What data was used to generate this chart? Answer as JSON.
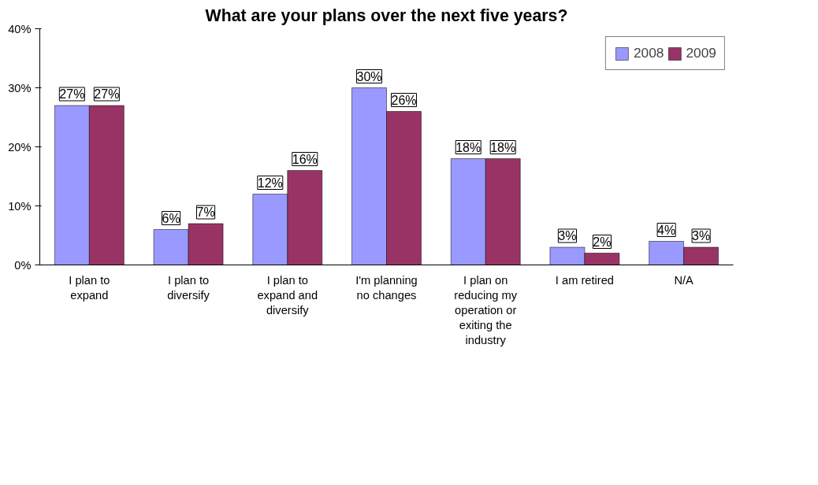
{
  "chart_data": {
    "type": "bar",
    "title": "What are your plans over the next five years?",
    "categories": [
      "I plan to expand",
      "I plan to diversify",
      "I plan to expand and diversify",
      "I'm planning no changes",
      "I plan on reducing my operation or exiting the industry",
      "I am retired",
      "N/A"
    ],
    "series": [
      {
        "name": "2008",
        "color": "#9999ff",
        "values": [
          27,
          6,
          12,
          30,
          18,
          3,
          4
        ],
        "value_labels": [
          "27%",
          "6%",
          "12%",
          "30%",
          "18%",
          "3%",
          "4%"
        ]
      },
      {
        "name": "2009",
        "color": "#993366",
        "values": [
          27,
          7,
          16,
          26,
          18,
          2,
          3
        ],
        "value_labels": [
          "27%",
          "7%",
          "16%",
          "26%",
          "18%",
          "2%",
          "3%"
        ]
      }
    ],
    "ylim": [
      0,
      40
    ],
    "yticks": [
      {
        "value": 0,
        "label": "0%"
      },
      {
        "value": 10,
        "label": "10%"
      },
      {
        "value": 20,
        "label": "20%"
      },
      {
        "value": 30,
        "label": "30%"
      },
      {
        "value": 40,
        "label": "40%"
      }
    ],
    "legend": "top right"
  }
}
